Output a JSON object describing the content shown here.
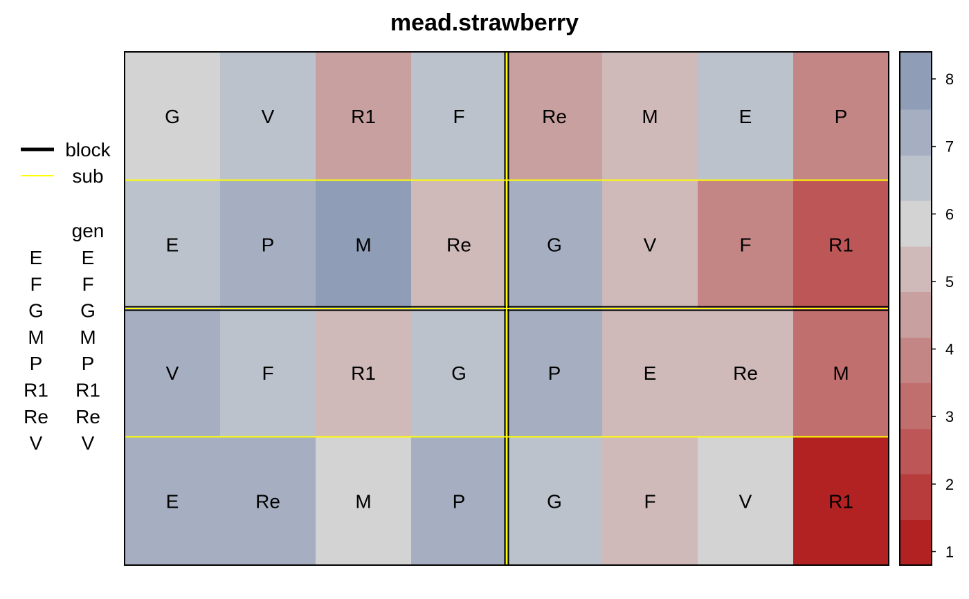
{
  "chart_data": {
    "type": "heatmap",
    "title": "mead.strawberry",
    "rows": 4,
    "cols": 8,
    "cells": [
      [
        {
          "label": "G",
          "value": 6.0
        },
        {
          "label": "V",
          "value": 6.5
        },
        {
          "label": "R1",
          "value": 4.4
        },
        {
          "label": "F",
          "value": 6.5
        },
        {
          "label": "Re",
          "value": 4.4
        },
        {
          "label": "M",
          "value": 5.0
        },
        {
          "label": "E",
          "value": 6.5
        },
        {
          "label": "P",
          "value": 3.9
        }
      ],
      [
        {
          "label": "E",
          "value": 6.5
        },
        {
          "label": "P",
          "value": 7.1
        },
        {
          "label": "M",
          "value": 7.8
        },
        {
          "label": "Re",
          "value": 5.0
        },
        {
          "label": "G",
          "value": 7.1
        },
        {
          "label": "V",
          "value": 5.0
        },
        {
          "label": "F",
          "value": 3.9
        },
        {
          "label": "R1",
          "value": 2.7
        }
      ],
      [
        {
          "label": "V",
          "value": 7.1
        },
        {
          "label": "F",
          "value": 6.5
        },
        {
          "label": "R1",
          "value": 5.0
        },
        {
          "label": "G",
          "value": 6.5
        },
        {
          "label": "P",
          "value": 7.1
        },
        {
          "label": "E",
          "value": 5.0
        },
        {
          "label": "Re",
          "value": 5.0
        },
        {
          "label": "M",
          "value": 3.3
        }
      ],
      [
        {
          "label": "E",
          "value": 7.1
        },
        {
          "label": "Re",
          "value": 7.1
        },
        {
          "label": "M",
          "value": 6.0
        },
        {
          "label": "P",
          "value": 7.1
        },
        {
          "label": "G",
          "value": 6.5
        },
        {
          "label": "F",
          "value": 5.0
        },
        {
          "label": "V",
          "value": 6.0
        },
        {
          "label": "R1",
          "value": 1.3
        }
      ]
    ],
    "blocks": {
      "row_split_after": 2,
      "col_split_after": 4
    },
    "sub_lines": {
      "row_splits_after": [
        1,
        2,
        3
      ],
      "col_split_after": 4
    },
    "colorbar": {
      "ticks": [
        1,
        2,
        3,
        4,
        5,
        6,
        7,
        8
      ],
      "range": [
        0.8,
        8.4
      ],
      "bins": [
        {
          "from": 0.8,
          "to": 1.47,
          "color": "#b22222"
        },
        {
          "from": 1.47,
          "to": 2.15,
          "color": "#b93c3c"
        },
        {
          "from": 2.15,
          "to": 2.82,
          "color": "#bd5656"
        },
        {
          "from": 2.82,
          "to": 3.5,
          "color": "#c16e6e"
        },
        {
          "from": 3.5,
          "to": 4.17,
          "color": "#c48585"
        },
        {
          "from": 4.17,
          "to": 4.85,
          "color": "#c9a0a0"
        },
        {
          "from": 4.85,
          "to": 5.52,
          "color": "#cfb9b9"
        },
        {
          "from": 5.52,
          "to": 6.2,
          "color": "#d3d3d3"
        },
        {
          "from": 6.2,
          "to": 6.87,
          "color": "#bcc2cc"
        },
        {
          "from": 6.87,
          "to": 7.55,
          "color": "#a6afc1"
        },
        {
          "from": 7.55,
          "to": 8.4,
          "color": "#8f9db7"
        }
      ]
    },
    "legend": {
      "line_items": [
        {
          "label": "block",
          "color": "#000000",
          "width": "thick"
        },
        {
          "label": "sub",
          "color": "#ffff00",
          "width": "thin"
        }
      ],
      "gen_header": "gen",
      "gen_levels": [
        "E",
        "F",
        "G",
        "M",
        "P",
        "R1",
        "Re",
        "V"
      ]
    }
  }
}
